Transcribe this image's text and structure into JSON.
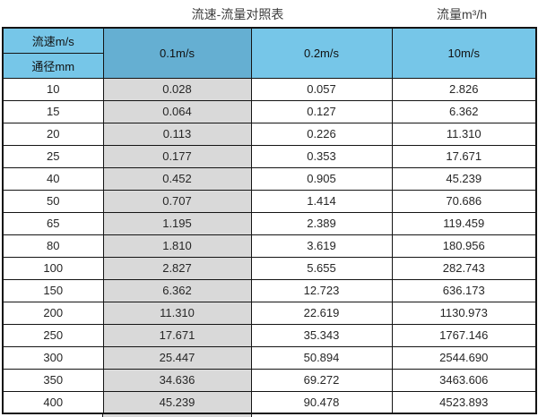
{
  "page": {
    "title": "流速-流量对照表",
    "unit_label": "流量m³/h"
  },
  "table": {
    "header": {
      "velocity_label": "流速m/s",
      "diameter_label": "通径mm",
      "columns": [
        "0.1m/s",
        "0.2m/s",
        "10m/s"
      ]
    },
    "rows": [
      [
        "10",
        "0.028",
        "0.057",
        "2.826"
      ],
      [
        "15",
        "0.064",
        "0.127",
        "6.362"
      ],
      [
        "20",
        "0.113",
        "0.226",
        "11.310"
      ],
      [
        "25",
        "0.177",
        "0.353",
        "17.671"
      ],
      [
        "40",
        "0.452",
        "0.905",
        "45.239"
      ],
      [
        "50",
        "0.707",
        "1.414",
        "70.686"
      ],
      [
        "65",
        "1.195",
        "2.389",
        "119.459"
      ],
      [
        "80",
        "1.810",
        "3.619",
        "180.956"
      ],
      [
        "100",
        "2.827",
        "5.655",
        "282.743"
      ],
      [
        "150",
        "6.362",
        "12.723",
        "636.173"
      ],
      [
        "200",
        "11.310",
        "22.619",
        "1130.973"
      ],
      [
        "250",
        "17.671",
        "35.343",
        "1767.146"
      ],
      [
        "300",
        "25.447",
        "50.894",
        "2544.690"
      ],
      [
        "350",
        "34.636",
        "69.272",
        "3463.606"
      ],
      [
        "400",
        "45.239",
        "90.478",
        "4523.893"
      ]
    ]
  },
  "colors": {
    "header_light_blue": "#76C6E8",
    "header_dark_blue": "#65AFD2",
    "highlight_grey": "#D9D9D9",
    "border_black": "#141414"
  },
  "chart_data": {
    "type": "table",
    "title": "流速-流量对照表",
    "unit": "流量m³/h",
    "columns": [
      "通径mm",
      "0.1m/s",
      "0.2m/s",
      "10m/s"
    ],
    "highlighted_column": "0.1m/s",
    "rows": [
      [
        10,
        0.028,
        0.057,
        2.826
      ],
      [
        15,
        0.064,
        0.127,
        6.362
      ],
      [
        20,
        0.113,
        0.226,
        11.31
      ],
      [
        25,
        0.177,
        0.353,
        17.671
      ],
      [
        40,
        0.452,
        0.905,
        45.239
      ],
      [
        50,
        0.707,
        1.414,
        70.686
      ],
      [
        65,
        1.195,
        2.389,
        119.459
      ],
      [
        80,
        1.81,
        3.619,
        180.956
      ],
      [
        100,
        2.827,
        5.655,
        282.743
      ],
      [
        150,
        6.362,
        12.723,
        636.173
      ],
      [
        200,
        11.31,
        22.619,
        1130.973
      ],
      [
        250,
        17.671,
        35.343,
        1767.146
      ],
      [
        300,
        25.447,
        50.894,
        2544.69
      ],
      [
        350,
        34.636,
        69.272,
        3463.606
      ],
      [
        400,
        45.239,
        90.478,
        4523.893
      ]
    ]
  }
}
